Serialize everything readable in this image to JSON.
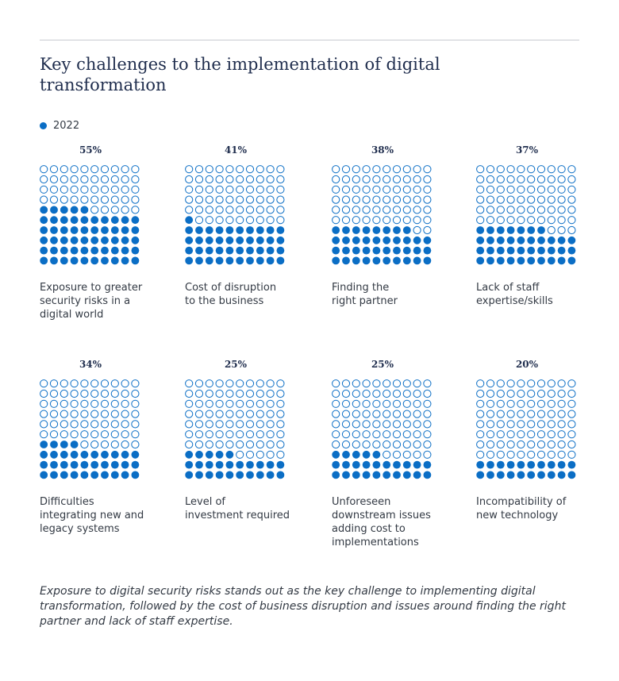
{
  "title": "Key challenges to the implementation of digital transformation",
  "legend": {
    "label": "2022",
    "color": "#0b6ec5"
  },
  "chart_data": {
    "type": "waffle",
    "series": [
      {
        "name": "2022"
      }
    ],
    "grid": {
      "rows": 10,
      "cols": 10
    },
    "unit": "%",
    "categories": [
      "Exposure to greater security risks in a digital world",
      "Cost of disruption to the business",
      "Finding the right partner",
      "Lack of staff expertise/skills",
      "Difficulties integrating new and legacy systems",
      "Level of investment required",
      "Unforeseen downstream issues adding cost to implementations",
      "Incompatibility of new technology"
    ],
    "values": [
      55,
      41,
      38,
      37,
      34,
      25,
      25,
      20
    ],
    "panels": [
      {
        "value": 55,
        "label_text": "55%",
        "label_lines": [
          "Exposure to greater",
          "security risks in a",
          "digital world"
        ]
      },
      {
        "value": 41,
        "label_text": "41%",
        "label_lines": [
          "Cost of disruption",
          "to the business"
        ]
      },
      {
        "value": 38,
        "label_text": "38%",
        "label_lines": [
          "Finding the",
          "right partner"
        ]
      },
      {
        "value": 37,
        "label_text": "37%",
        "label_lines": [
          "Lack of staff",
          "expertise/skills"
        ]
      },
      {
        "value": 34,
        "label_text": "34%",
        "label_lines": [
          "Difficulties",
          "integrating new and",
          "legacy systems"
        ]
      },
      {
        "value": 25,
        "label_text": "25%",
        "label_lines": [
          "Level of",
          "investment required"
        ]
      },
      {
        "value": 25,
        "label_text": "25%",
        "label_lines": [
          "Unforeseen",
          "downstream issues",
          "adding cost to",
          "implementations"
        ]
      },
      {
        "value": 20,
        "label_text": "20%",
        "label_lines": [
          "Incompatibility of",
          "new technology"
        ]
      }
    ]
  },
  "caption": "Exposure to digital security risks stands out as the key challenge to implementing digital transformation, followed by the cost of business disruption and issues around finding the right partner and lack of staff expertise."
}
